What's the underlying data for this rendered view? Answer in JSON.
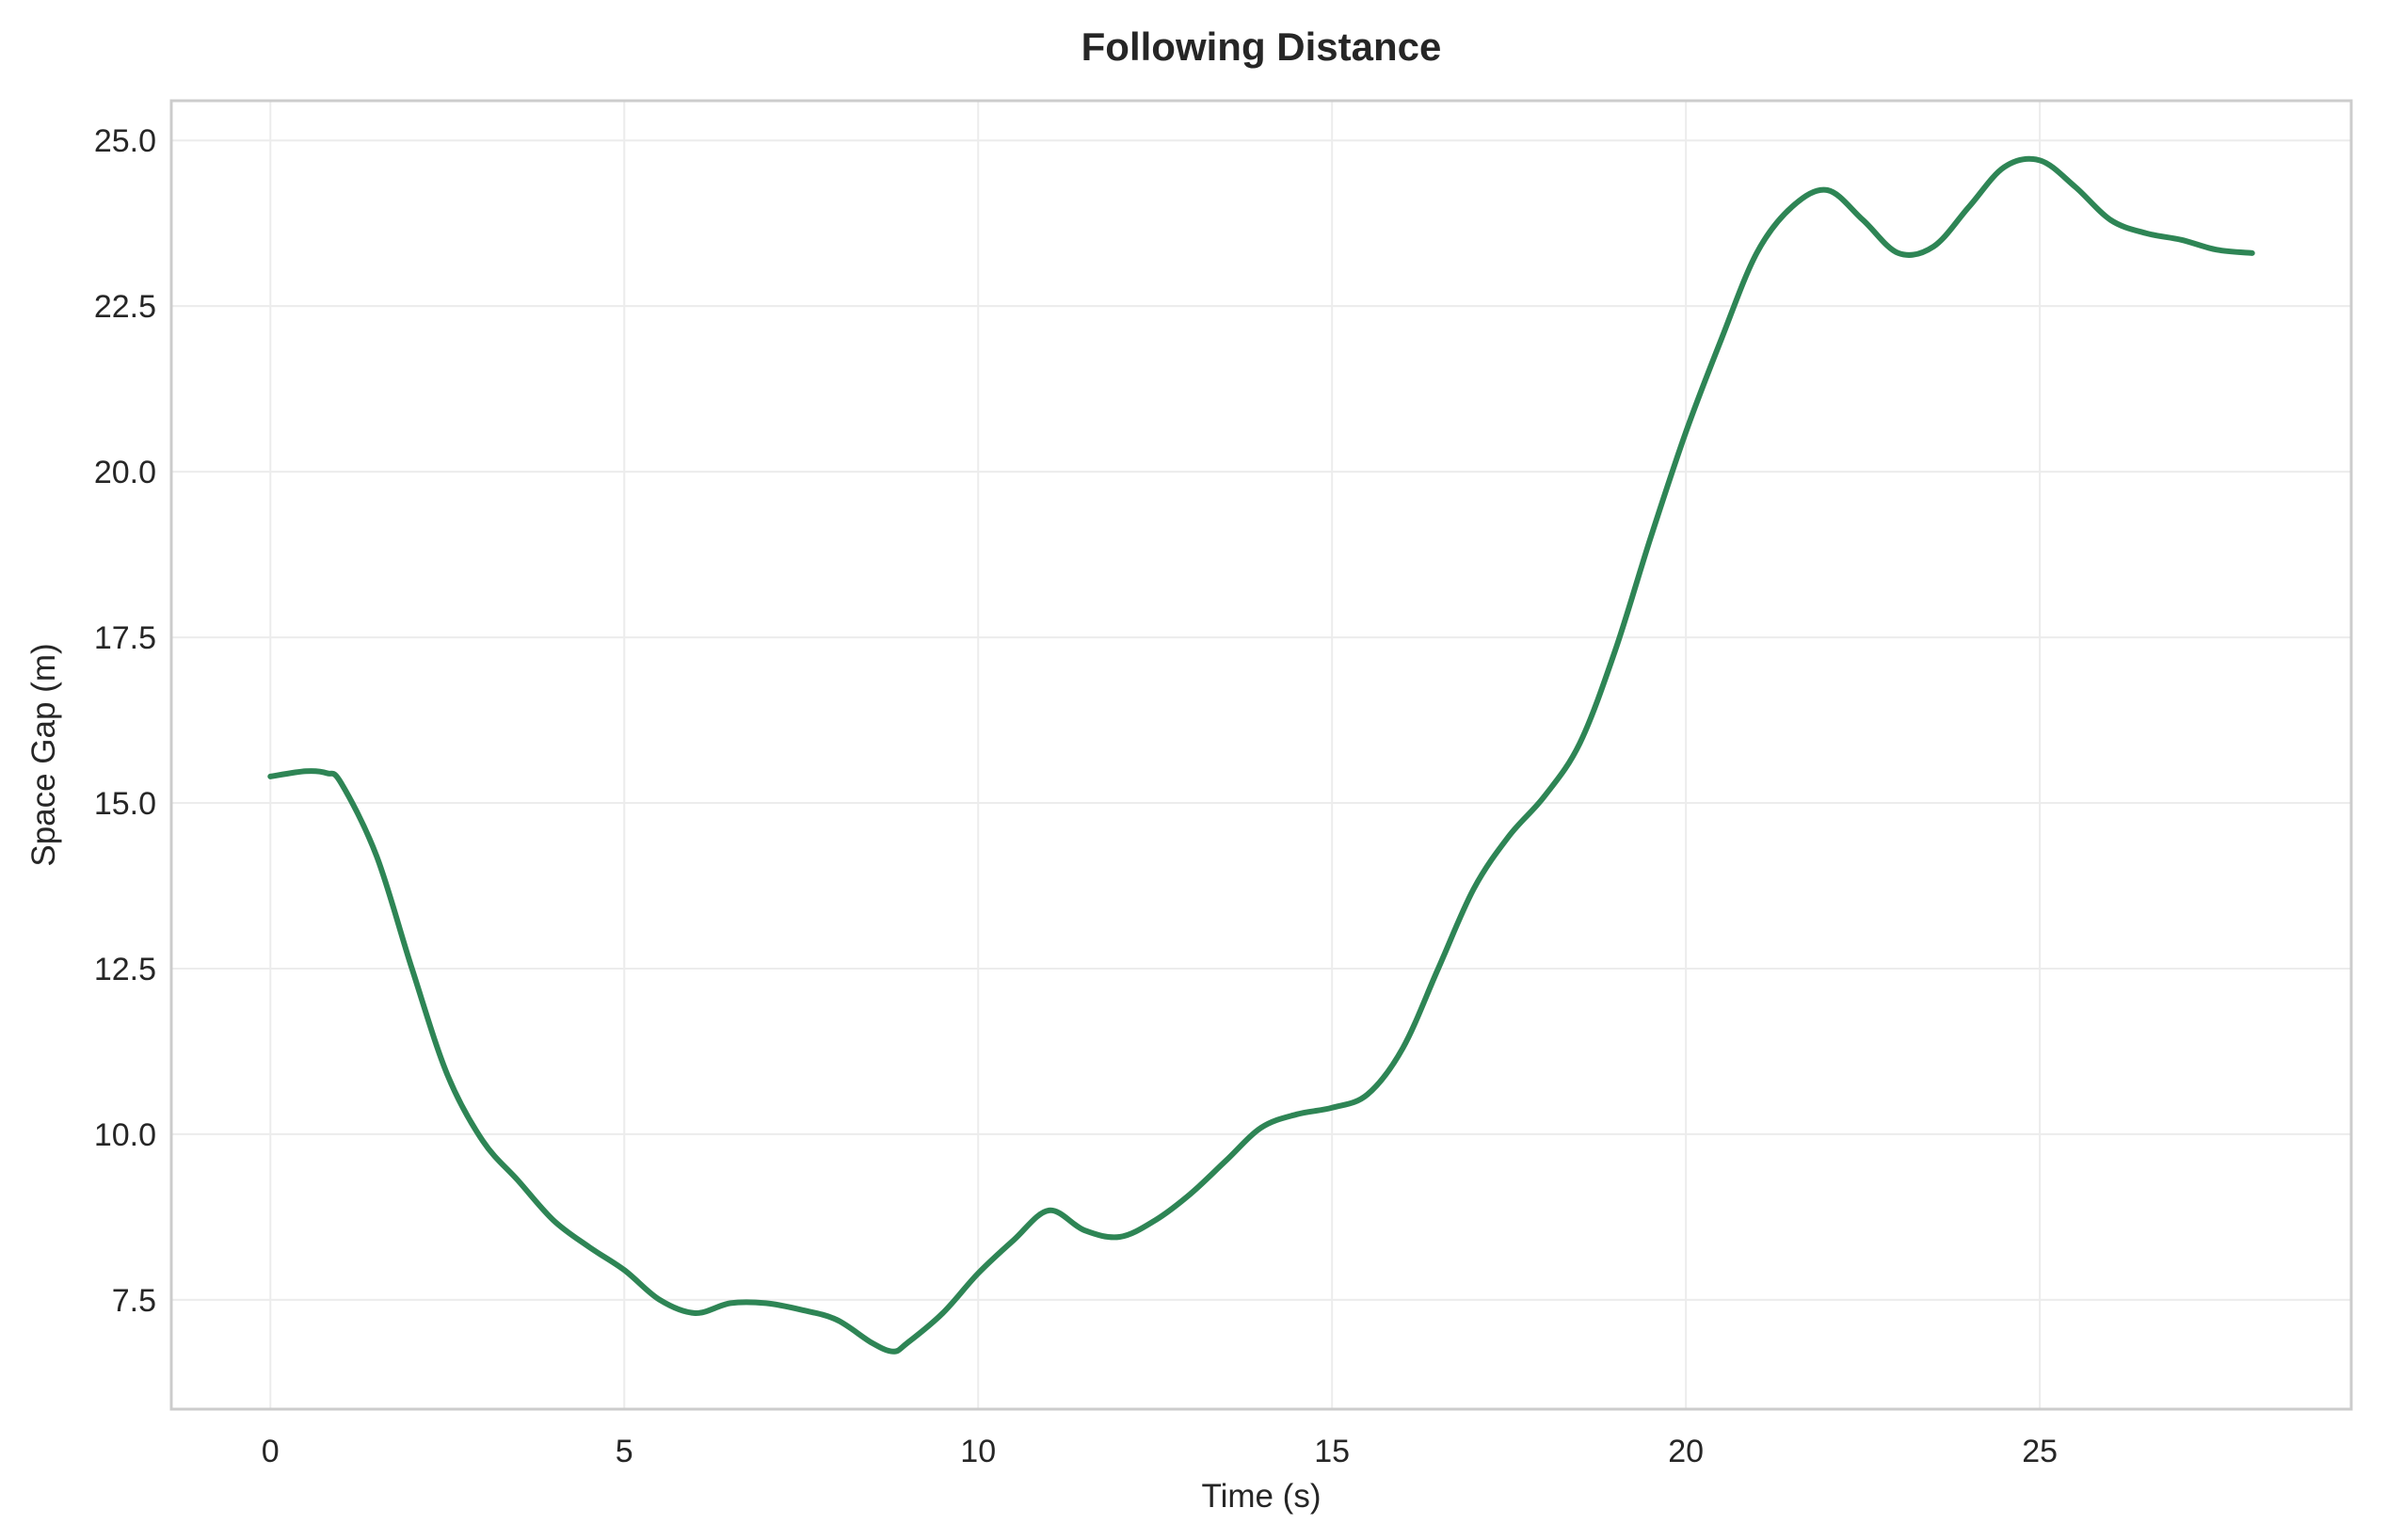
{
  "chart_data": {
    "type": "line",
    "title": "Following Distance",
    "xlabel": "Time (s)",
    "ylabel": "Space Gap (m)",
    "xlim": [
      -1.4,
      29.4
    ],
    "ylim": [
      5.85,
      25.6
    ],
    "xticks": [
      0,
      5,
      10,
      15,
      20,
      25
    ],
    "xtick_labels": [
      "0",
      "5",
      "10",
      "15",
      "20",
      "25"
    ],
    "yticks": [
      7.5,
      10.0,
      12.5,
      15.0,
      17.5,
      20.0,
      22.5,
      25.0
    ],
    "ytick_labels": [
      "7.5",
      "10.0",
      "12.5",
      "15.0",
      "17.5",
      "20.0",
      "22.5",
      "25.0"
    ],
    "grid": true,
    "legend": "none",
    "series": [
      {
        "color": "#2e8555",
        "x": [
          0,
          0.5,
          0.8,
          1.0,
          1.5,
          2.0,
          2.5,
          3.0,
          3.5,
          4.0,
          4.5,
          5.0,
          5.5,
          6.0,
          6.5,
          7.0,
          7.5,
          8.0,
          8.5,
          8.8,
          9.0,
          9.5,
          10.0,
          10.5,
          11.0,
          11.5,
          12.0,
          12.5,
          13.0,
          13.5,
          14.0,
          14.5,
          15.0,
          15.5,
          16.0,
          16.5,
          17.0,
          17.5,
          18.0,
          18.5,
          19.0,
          19.5,
          20.0,
          20.5,
          21.0,
          21.5,
          22.0,
          22.5,
          23.0,
          23.5,
          24.0,
          24.5,
          25.0,
          25.5,
          26.0,
          26.5,
          27.0,
          27.5,
          28.0
        ],
        "y": [
          15.4,
          15.48,
          15.45,
          15.3,
          14.2,
          12.5,
          10.9,
          9.9,
          9.3,
          8.7,
          8.3,
          7.95,
          7.5,
          7.3,
          7.45,
          7.45,
          7.35,
          7.2,
          6.85,
          6.72,
          6.85,
          7.3,
          7.9,
          8.4,
          8.85,
          8.55,
          8.45,
          8.7,
          9.1,
          9.6,
          10.1,
          10.3,
          10.4,
          10.6,
          11.3,
          12.5,
          13.7,
          14.5,
          15.1,
          15.9,
          17.3,
          19.0,
          20.6,
          22.0,
          23.3,
          24.0,
          24.25,
          23.8,
          23.3,
          23.4,
          24.0,
          24.6,
          24.7,
          24.3,
          23.8,
          23.6,
          23.5,
          23.35,
          23.3
        ]
      }
    ]
  }
}
